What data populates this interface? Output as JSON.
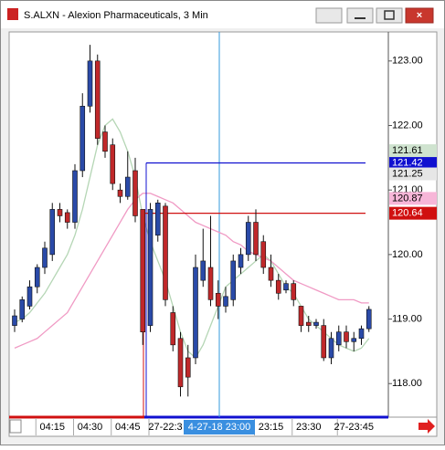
{
  "chart_data": {
    "type": "candlestick",
    "title": "S.ALXN - Alexion Pharmaceuticals, 3 Min",
    "categories": [
      null,
      null,
      null,
      null,
      null,
      "04:15",
      null,
      null,
      null,
      null,
      "04:30",
      null,
      null,
      null,
      null,
      "04:45",
      null,
      null,
      null,
      null,
      "27-22:3",
      null,
      null,
      null,
      null,
      null,
      null,
      null,
      null,
      null,
      null,
      null,
      null,
      null,
      "23:15",
      null,
      null,
      null,
      null,
      "23:30",
      null,
      null,
      null,
      null,
      null,
      "27-23:45",
      null,
      null
    ],
    "crosshair_label": "4-27-18 23:00",
    "open": [
      118.9,
      119.0,
      119.2,
      119.5,
      119.8,
      120.0,
      120.7,
      120.65,
      120.5,
      121.3,
      122.3,
      123.0,
      121.9,
      121.7,
      121.0,
      120.9,
      121.3,
      120.7,
      118.9,
      120.3,
      120.75,
      119.1,
      118.7,
      118.4,
      118.4,
      119.6,
      119.8,
      119.4,
      119.2,
      119.3,
      119.8,
      120.0,
      120.5,
      120.2,
      119.8,
      119.6,
      119.45,
      119.55,
      119.2,
      118.95,
      118.9,
      118.9,
      118.4,
      118.6,
      118.8,
      118.65,
      118.7,
      118.85
    ],
    "high": [
      119.15,
      119.35,
      119.6,
      119.85,
      120.2,
      120.8,
      120.8,
      120.7,
      121.4,
      122.5,
      123.25,
      123.1,
      122.0,
      121.8,
      121.1,
      121.6,
      121.5,
      120.7,
      120.8,
      120.85,
      120.8,
      119.2,
      118.8,
      118.6,
      120.0,
      120.4,
      120.6,
      119.6,
      119.5,
      120.0,
      120.1,
      120.6,
      120.7,
      120.3,
      120.0,
      119.7,
      119.6,
      119.6,
      119.2,
      119.05,
      119.0,
      119.0,
      118.8,
      118.9,
      118.9,
      118.8,
      118.9,
      119.2
    ],
    "low": [
      118.8,
      118.95,
      119.15,
      119.4,
      119.7,
      119.9,
      120.5,
      120.4,
      120.4,
      121.2,
      122.2,
      121.7,
      121.5,
      121.0,
      120.8,
      120.85,
      120.5,
      118.6,
      118.8,
      120.2,
      119.2,
      118.5,
      117.8,
      117.8,
      118.3,
      119.5,
      119.2,
      119.0,
      119.1,
      119.2,
      119.7,
      119.9,
      119.9,
      119.7,
      119.5,
      119.3,
      119.4,
      119.2,
      118.8,
      118.8,
      118.85,
      118.35,
      118.3,
      118.5,
      118.55,
      118.5,
      118.6,
      118.8
    ],
    "close": [
      119.05,
      119.3,
      119.5,
      119.8,
      120.1,
      120.7,
      120.6,
      120.5,
      121.3,
      122.3,
      123.0,
      121.8,
      121.6,
      121.1,
      120.9,
      121.2,
      120.6,
      118.8,
      120.7,
      120.8,
      119.3,
      118.6,
      117.95,
      118.1,
      119.8,
      119.9,
      119.3,
      119.2,
      119.35,
      119.9,
      120.0,
      120.5,
      120.0,
      119.8,
      119.6,
      119.4,
      119.55,
      119.3,
      118.9,
      118.9,
      118.95,
      118.4,
      118.7,
      118.8,
      118.65,
      118.7,
      118.85,
      119.15
    ],
    "up_color": "#2a4aa8",
    "down_color": "#c0282a",
    "lines": [
      {
        "color": "#b5d6b5",
        "values": [
          118.95,
          119.0,
          119.1,
          119.25,
          119.4,
          119.6,
          119.8,
          120.0,
          120.3,
          120.7,
          121.2,
          121.7,
          122.0,
          122.1,
          121.9,
          121.6,
          121.2,
          120.6,
          120.2,
          119.9,
          119.6,
          119.2,
          118.8,
          118.5,
          118.4,
          118.6,
          118.9,
          119.2,
          119.5,
          119.6,
          119.7,
          119.8,
          119.9,
          120.0,
          119.9,
          119.7,
          119.5,
          119.4,
          119.2,
          119.0,
          118.9,
          118.8,
          118.7,
          118.6,
          118.55,
          118.5,
          118.55,
          118.7
        ]
      },
      {
        "color": "#f09ac4",
        "values": [
          118.55,
          118.6,
          118.65,
          118.7,
          118.8,
          118.9,
          119.0,
          119.1,
          119.3,
          119.5,
          119.7,
          119.9,
          120.1,
          120.3,
          120.5,
          120.7,
          120.85,
          120.95,
          120.95,
          120.9,
          120.85,
          120.8,
          120.7,
          120.6,
          120.5,
          120.45,
          120.4,
          120.35,
          120.3,
          120.2,
          120.15,
          120.05,
          120.0,
          119.95,
          119.9,
          119.8,
          119.7,
          119.6,
          119.55,
          119.5,
          119.45,
          119.4,
          119.35,
          119.3,
          119.3,
          119.3,
          119.25,
          119.25
        ]
      }
    ],
    "levels": [
      {
        "value": 121.42,
        "color": "#1010d0"
      },
      {
        "value": 120.64,
        "color": "#d01010"
      }
    ],
    "markers": [
      {
        "value": 121.61,
        "color": "#cfe3cf"
      },
      {
        "value": 121.25,
        "color": "#e6e6e6"
      },
      {
        "value": 120.87,
        "color": "#f7b6d8"
      }
    ],
    "ylim": [
      117.48,
      123.45
    ],
    "yticks": [
      {
        "value": 118,
        "label": "118.00"
      },
      {
        "value": 119,
        "label": "119.00"
      },
      {
        "value": 120,
        "label": "120.00"
      },
      {
        "value": 121,
        "label": "121.00"
      },
      {
        "value": 122,
        "label": "122.00"
      },
      {
        "value": 123,
        "label": "123.00"
      }
    ]
  }
}
